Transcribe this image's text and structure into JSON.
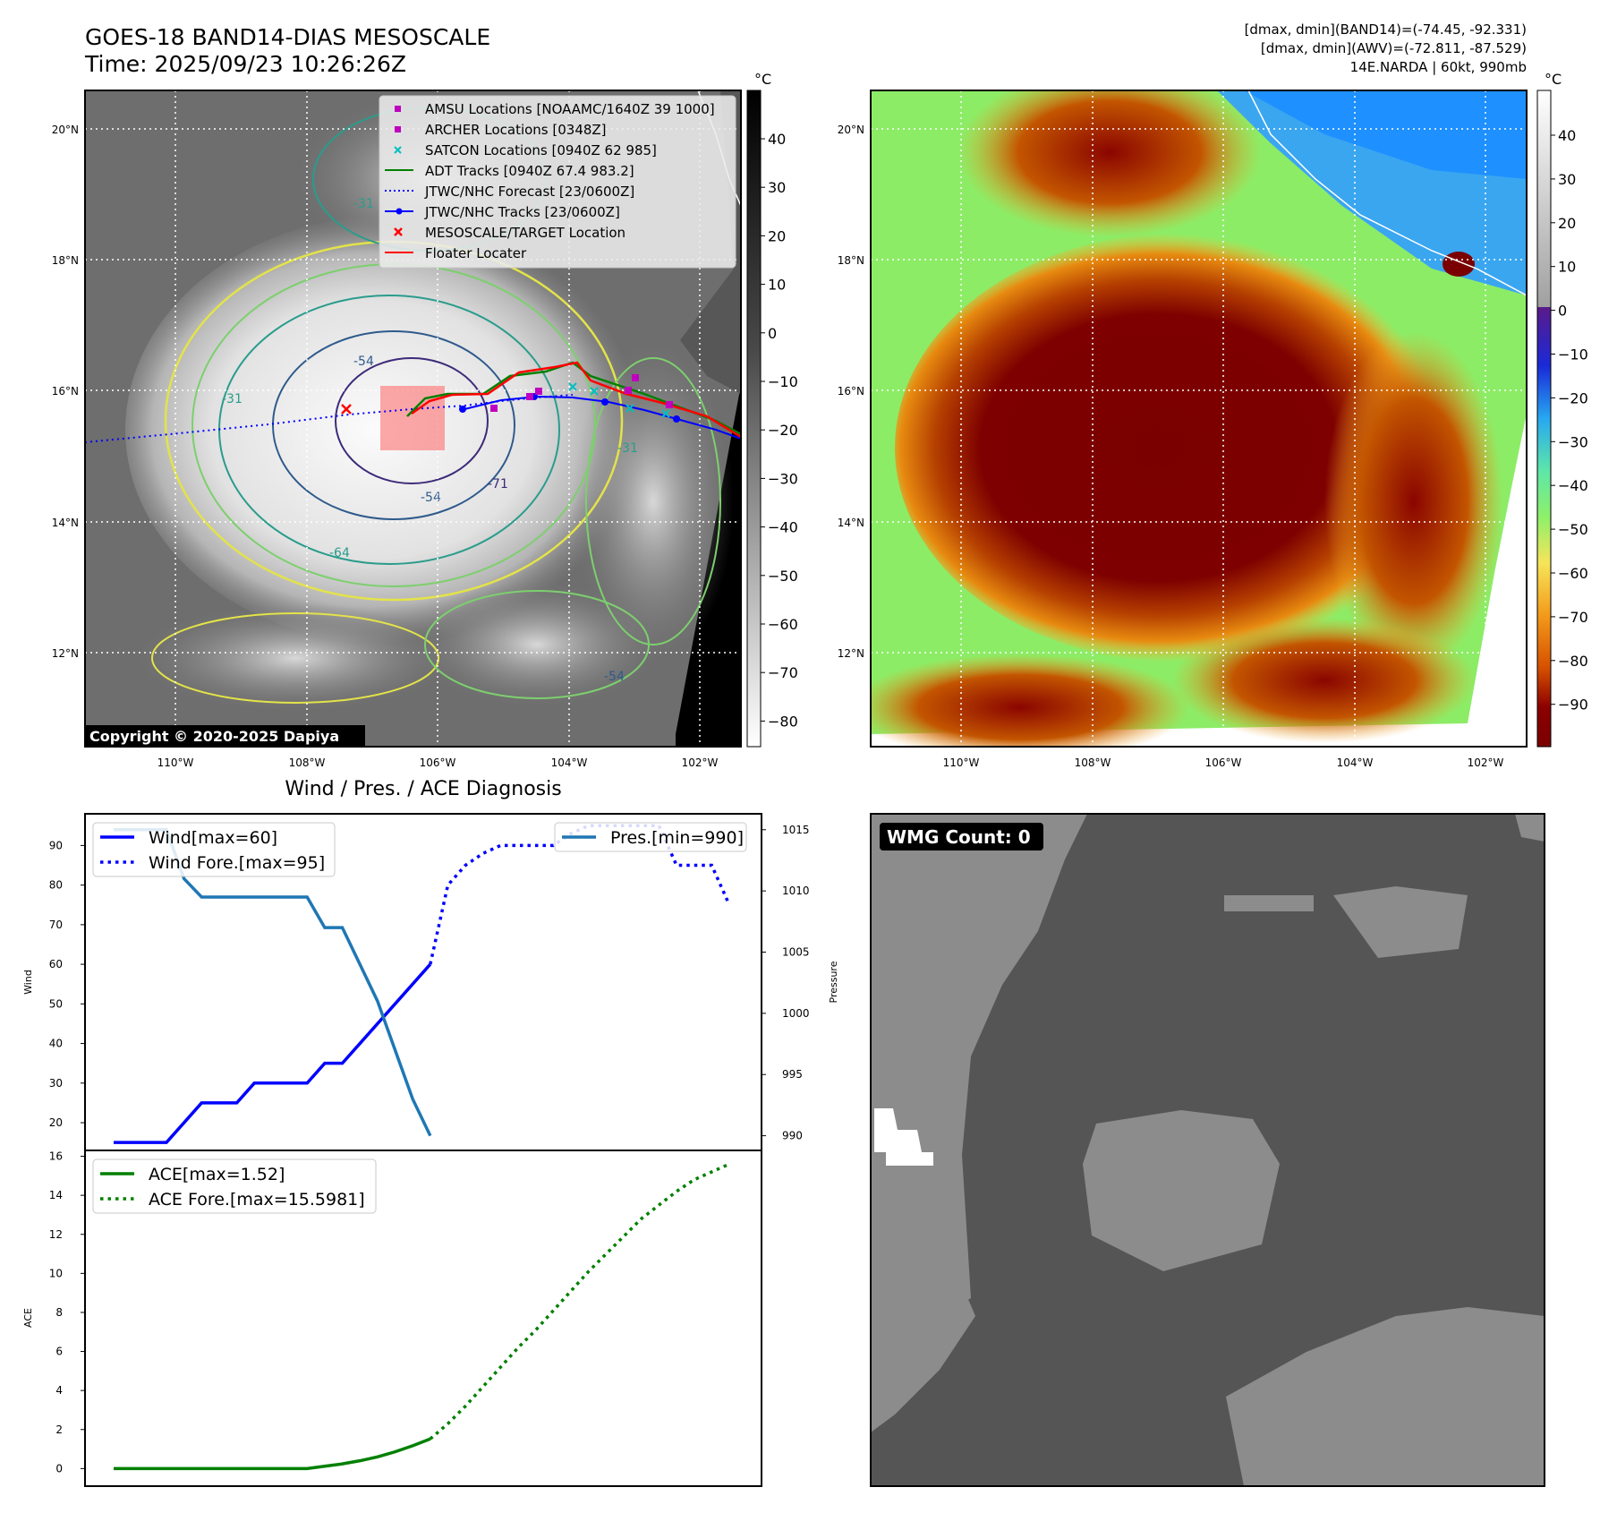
{
  "header": {
    "title_line1": "GOES-18 BAND14-DIAS MESOSCALE",
    "title_line2": "Time: 2025/09/23 10:26:26Z",
    "info_line1": "[dmax, dmin](BAND14)=(-74.45, -92.331)",
    "info_line2": "[dmax, dmin](AWV)=(-72.811, -87.529)",
    "info_line3": "14E.NARDA | 60kt, 990mb"
  },
  "map": {
    "lat_labels": [
      "20°N",
      "18°N",
      "16°N",
      "14°N",
      "12°N"
    ],
    "lon_labels": [
      "110°W",
      "108°W",
      "106°W",
      "104°W",
      "102°W"
    ],
    "copyright": "Copyright © 2020-2025 Dapiya",
    "contour_labels": [
      "-31",
      "-31",
      "-54",
      "-54",
      "-64",
      "-71",
      "-54",
      "-31"
    ],
    "legend": [
      {
        "label": "AMSU Locations [NOAAMC/1640Z 39 1000]",
        "color": "#bf00bf",
        "marker": "square"
      },
      {
        "label": "ARCHER Locations [0348Z]",
        "color": "#bf00bf",
        "marker": "square"
      },
      {
        "label": "SATCON Locations [0940Z 62 985]",
        "color": "#00bfbf",
        "marker": "x"
      },
      {
        "label": "ADT Tracks [0940Z 67.4 983.2]",
        "color": "#008000",
        "marker": "line"
      },
      {
        "label": "JTWC/NHC Forecast [23/0600Z]",
        "color": "#0000ff",
        "marker": "dotted"
      },
      {
        "label": "JTWC/NHC Tracks [23/0600Z]",
        "color": "#0000ff",
        "marker": "line-dot"
      },
      {
        "label": "MESOSCALE/TARGET Location",
        "color": "#ff0000",
        "marker": "x"
      },
      {
        "label": "Floater Locater",
        "color": "#ff0000",
        "marker": "line"
      }
    ]
  },
  "colorbar1": {
    "unit": "°C",
    "ticks": [
      "40",
      "30",
      "20",
      "10",
      "0",
      "−10",
      "−20",
      "−30",
      "−40",
      "−50",
      "−60",
      "−70",
      "−80"
    ]
  },
  "colorbar2": {
    "unit": "°C",
    "ticks": [
      "40",
      "30",
      "20",
      "10",
      "0",
      "−10",
      "−20",
      "−30",
      "−40",
      "−50",
      "−60",
      "−70",
      "−80",
      "−90"
    ]
  },
  "diagnosis": {
    "title": "Wind / Pres. / ACE Diagnosis",
    "wind_ylabel": "Wind",
    "pres_ylabel": "Pressure",
    "ace_ylabel": "ACE",
    "wind_ticks": [
      "90",
      "80",
      "70",
      "60",
      "50",
      "40",
      "30",
      "20"
    ],
    "pres_ticks": [
      "1015",
      "1010",
      "1005",
      "1000",
      "995",
      "990"
    ],
    "ace_ticks": [
      "16",
      "14",
      "12",
      "10",
      "8",
      "6",
      "4",
      "2",
      "0"
    ],
    "legend_wind": "Wind[max=60]",
    "legend_wind_fore": "Wind Fore.[max=95]",
    "legend_pres": "Pres.[min=990]",
    "legend_ace": "ACE[max=1.52]",
    "legend_ace_fore": "ACE Fore.[max=15.5981]",
    "wmg_label": "WMG Count: 0"
  },
  "chart_data": [
    {
      "type": "line",
      "title": "",
      "xlabel": "",
      "ylabel": "Wind",
      "ylim": [
        13,
        98
      ],
      "series": [
        {
          "name": "Wind[max=60]",
          "color": "#0000ff",
          "style": "solid",
          "x": [
            0,
            1,
            2,
            3,
            4,
            5,
            6,
            7,
            8,
            9,
            10,
            11,
            12,
            13,
            14,
            15,
            16,
            17,
            18
          ],
          "values": [
            15,
            15,
            15,
            15,
            20,
            25,
            25,
            25,
            30,
            30,
            30,
            30,
            35,
            35,
            40,
            45,
            50,
            55,
            60
          ]
        },
        {
          "name": "Wind Fore.[max=95]",
          "color": "#0000ff",
          "style": "dotted",
          "x": [
            18,
            19,
            20,
            21,
            22,
            23,
            24,
            25,
            26,
            27,
            28,
            29,
            30,
            31,
            32,
            33,
            34,
            35
          ],
          "values": [
            60,
            80,
            85,
            88,
            90,
            90,
            90,
            90,
            93,
            95,
            95,
            95,
            95,
            95,
            85,
            85,
            85,
            75
          ]
        }
      ]
    },
    {
      "type": "line",
      "title": "",
      "xlabel": "",
      "ylabel": "Pressure",
      "ylim": [
        988.8,
        1016.3
      ],
      "series": [
        {
          "name": "Pres.[min=990]",
          "color": "#1f77b4",
          "style": "solid",
          "x": [
            0,
            1,
            2,
            3,
            4,
            5,
            6,
            7,
            8,
            9,
            10,
            11,
            12,
            13,
            14,
            15,
            16,
            17,
            18
          ],
          "values": [
            1015,
            1015,
            1015,
            1015,
            1011,
            1009.5,
            1009.5,
            1009.5,
            1009.5,
            1009.5,
            1009.5,
            1009.5,
            1007,
            1007,
            1004,
            1001,
            997,
            993,
            990
          ]
        }
      ]
    },
    {
      "type": "line",
      "title": "",
      "xlabel": "",
      "ylabel": "ACE",
      "ylim": [
        -0.9,
        16.3
      ],
      "series": [
        {
          "name": "ACE[max=1.52]",
          "color": "#008000",
          "style": "solid",
          "x": [
            0,
            1,
            2,
            3,
            4,
            5,
            6,
            7,
            8,
            9,
            10,
            11,
            12,
            13,
            14,
            15,
            16,
            17,
            18
          ],
          "values": [
            0,
            0,
            0,
            0,
            0,
            0,
            0,
            0,
            0,
            0,
            0,
            0,
            0.12,
            0.24,
            0.4,
            0.6,
            0.86,
            1.17,
            1.52
          ]
        },
        {
          "name": "ACE Fore.[max=15.5981]",
          "color": "#008000",
          "style": "dotted",
          "x": [
            18,
            19,
            20,
            21,
            22,
            23,
            24,
            25,
            26,
            27,
            28,
            29,
            30,
            31,
            32,
            33,
            34,
            35
          ],
          "values": [
            1.52,
            2.3,
            3.2,
            4.2,
            5.2,
            6.2,
            7.1,
            8.1,
            9.1,
            10.1,
            11.0,
            11.9,
            12.8,
            13.5,
            14.2,
            14.8,
            15.2,
            15.6
          ]
        }
      ]
    }
  ]
}
